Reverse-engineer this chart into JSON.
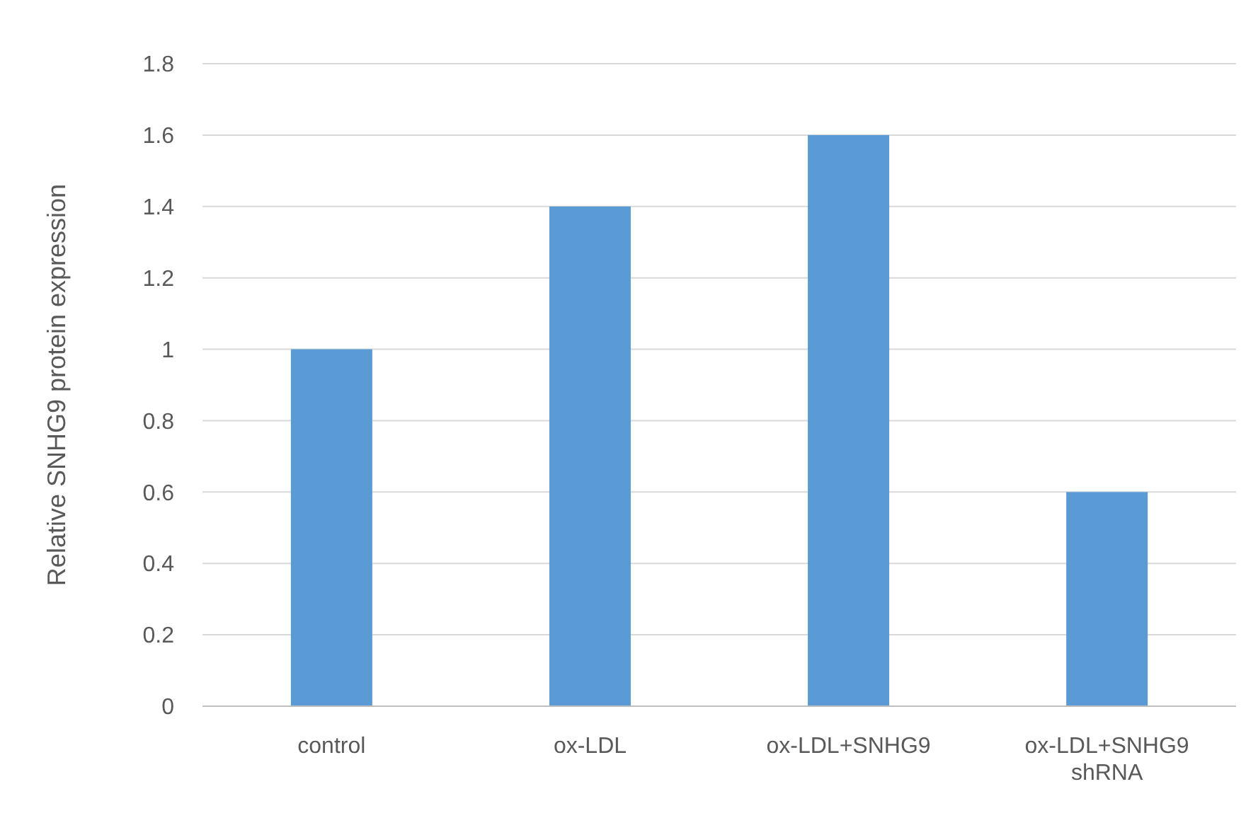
{
  "chart_data": {
    "type": "bar",
    "ylabel": "Relative SNHG9 protein expression",
    "categories": [
      "control",
      "ox-LDL",
      "ox-LDL+SNHG9",
      "ox-LDL+SNHG9 shRNA"
    ],
    "values": [
      1,
      1.4,
      1.6,
      0.6
    ],
    "color": "#5b9bd5",
    "ylim": [
      0,
      1.8
    ],
    "yticks": [
      0,
      0.2,
      0.4,
      0.6,
      0.8,
      1,
      1.2,
      1.4,
      1.6,
      1.8
    ],
    "grid": "y"
  }
}
